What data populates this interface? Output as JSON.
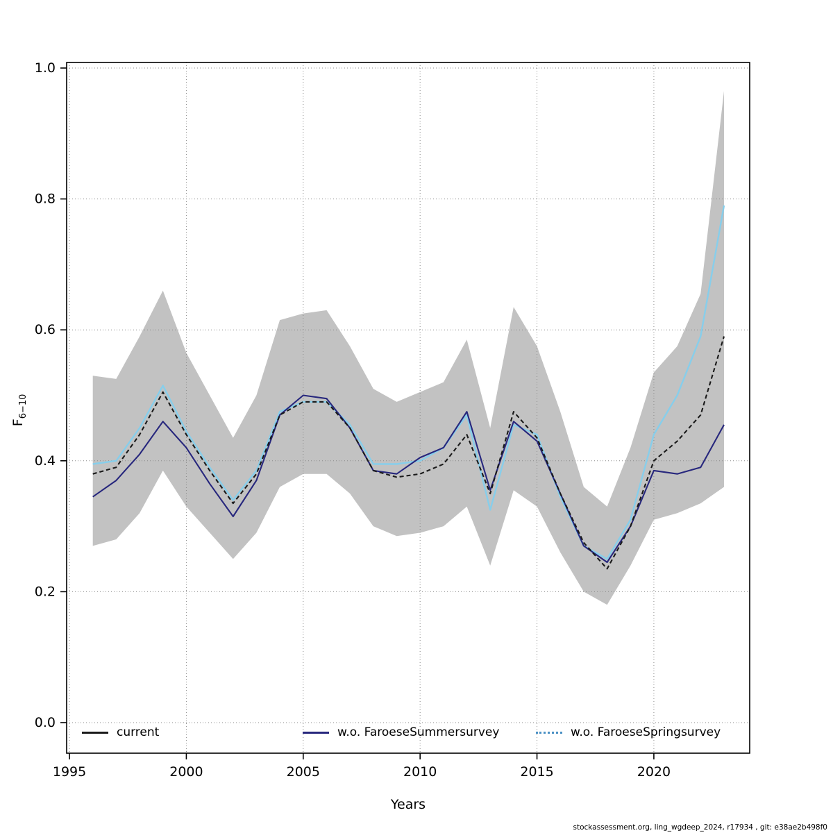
{
  "footer": "stockassessment.org, ling_wgdeep_2024, r17934 , git: e38ae2b498f0",
  "chart_data": {
    "type": "line",
    "title": "",
    "xlabel": "Years",
    "ylabel": "F6-10",
    "ylabel_base": "F",
    "ylabel_sub": "6−10",
    "xlim": [
      1994.88,
      2024.1
    ],
    "ylim": [
      0,
      1.0
    ],
    "grid": true,
    "legend_position": "bottom",
    "x_ticks": [
      1995,
      2000,
      2005,
      2010,
      2015,
      2020
    ],
    "y_ticks": [
      0.0,
      0.2,
      0.4,
      0.6,
      0.8,
      1.0
    ],
    "y_tick_labels": [
      "0.0",
      "0.2",
      "0.4",
      "0.6",
      "0.8",
      "1.0"
    ],
    "x": [
      1996,
      1997,
      1998,
      1999,
      2000,
      2001,
      2002,
      2003,
      2004,
      2005,
      2006,
      2007,
      2008,
      2009,
      2010,
      2011,
      2012,
      2013,
      2014,
      2015,
      2016,
      2017,
      2018,
      2019,
      2020,
      2021,
      2022,
      2023
    ],
    "series": [
      {
        "name": "current",
        "color": "#1a1a1a",
        "style": "dashed",
        "legend_style": "solid",
        "values": [
          0.38,
          0.39,
          0.44,
          0.505,
          0.44,
          0.385,
          0.335,
          0.38,
          0.47,
          0.49,
          0.49,
          0.45,
          0.385,
          0.375,
          0.38,
          0.395,
          0.44,
          0.35,
          0.475,
          0.435,
          0.35,
          0.275,
          0.235,
          0.3,
          0.4,
          0.43,
          0.47,
          0.59
        ]
      },
      {
        "name": "w.o. FaroeseSummersurvey",
        "color": "#27277d",
        "style": "solid",
        "legend_style": "solid",
        "values": [
          0.345,
          0.37,
          0.41,
          0.46,
          0.42,
          0.365,
          0.315,
          0.37,
          0.47,
          0.5,
          0.495,
          0.45,
          0.385,
          0.38,
          0.405,
          0.42,
          0.475,
          0.355,
          0.46,
          0.43,
          0.35,
          0.27,
          0.245,
          0.3,
          0.385,
          0.38,
          0.39,
          0.455
        ]
      },
      {
        "name": "w.o. FaroeseSpringsurvey",
        "color": "#87CEEB",
        "style": "solid",
        "legend_style": "dotted",
        "legend_color": "#4a90c4",
        "values": [
          0.395,
          0.4,
          0.45,
          0.515,
          0.445,
          0.39,
          0.34,
          0.385,
          0.475,
          0.49,
          0.49,
          0.455,
          0.395,
          0.395,
          0.4,
          0.42,
          0.47,
          0.325,
          0.455,
          0.44,
          0.345,
          0.27,
          0.25,
          0.31,
          0.44,
          0.5,
          0.59,
          0.79
        ]
      }
    ],
    "band": {
      "name": "current-confidence-band",
      "color": "#c2c2c2",
      "lower": [
        0.27,
        0.28,
        0.32,
        0.385,
        0.33,
        0.29,
        0.25,
        0.29,
        0.36,
        0.38,
        0.38,
        0.35,
        0.3,
        0.285,
        0.29,
        0.3,
        0.33,
        0.24,
        0.355,
        0.33,
        0.26,
        0.2,
        0.18,
        0.24,
        0.31,
        0.32,
        0.335,
        0.36
      ],
      "upper": [
        0.53,
        0.525,
        0.59,
        0.66,
        0.565,
        0.5,
        0.435,
        0.5,
        0.615,
        0.625,
        0.63,
        0.575,
        0.51,
        0.49,
        0.505,
        0.52,
        0.585,
        0.45,
        0.635,
        0.575,
        0.475,
        0.36,
        0.33,
        0.42,
        0.535,
        0.575,
        0.655,
        0.965
      ]
    }
  }
}
